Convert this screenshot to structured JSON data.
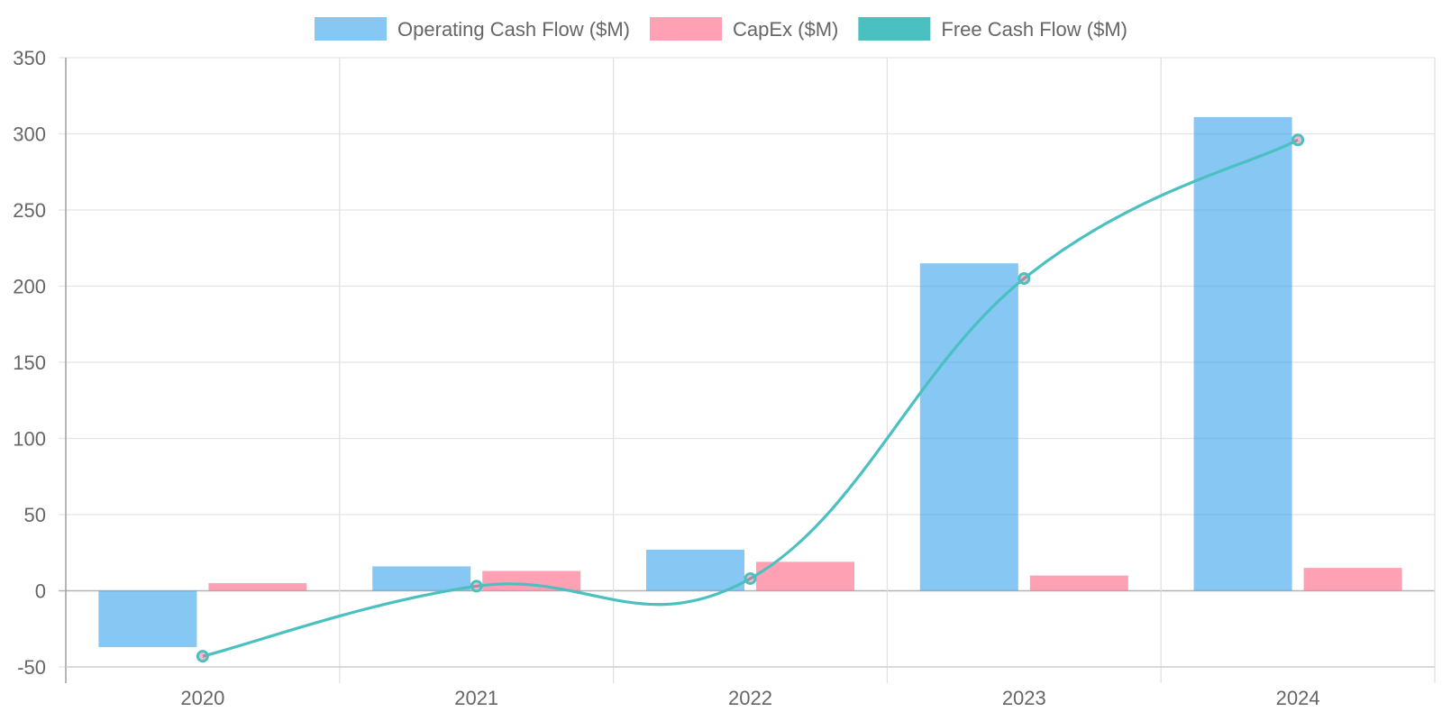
{
  "chart_data": {
    "type": "bar",
    "categories": [
      "2020",
      "2021",
      "2022",
      "2023",
      "2024"
    ],
    "series": [
      {
        "name": "Operating Cash Flow ($M)",
        "type": "bar",
        "color": "#36A2EB",
        "values": [
          -37,
          16,
          27,
          215,
          311
        ]
      },
      {
        "name": "CapEx ($M)",
        "type": "bar",
        "color": "#FF6384",
        "values": [
          5,
          13,
          19,
          10,
          15
        ]
      },
      {
        "name": "Free Cash Flow ($M)",
        "type": "line",
        "color": "#4BC0C0",
        "values": [
          -43,
          3,
          8,
          205,
          296
        ]
      }
    ],
    "ylim": [
      -50,
      350
    ],
    "yticks": [
      "-50",
      "0",
      "50",
      "100",
      "150",
      "200",
      "250",
      "300",
      "350"
    ],
    "legend": "top",
    "grid": true
  }
}
